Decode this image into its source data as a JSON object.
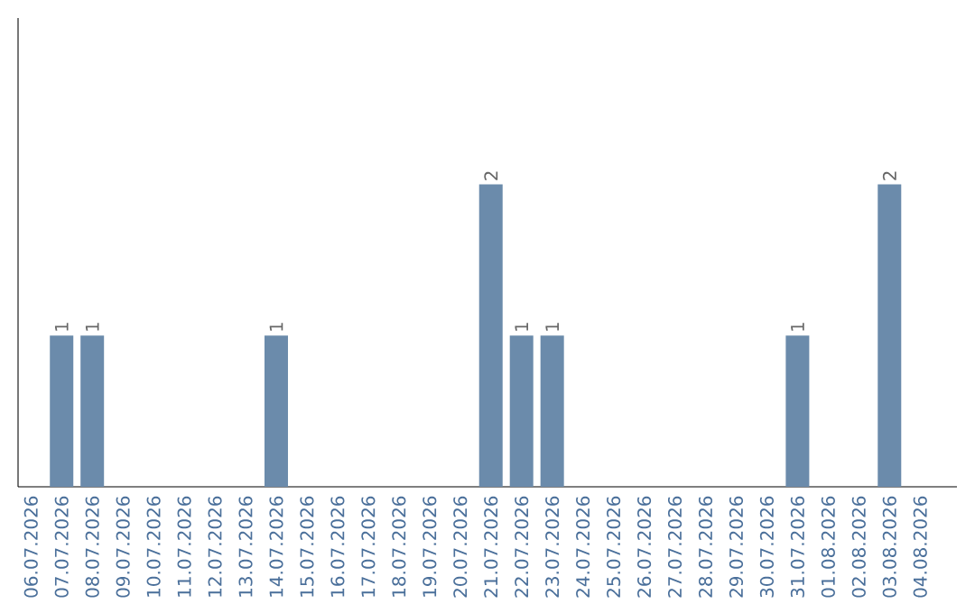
{
  "chart_data": {
    "type": "bar",
    "categories": [
      "06.07.2026",
      "07.07.2026",
      "08.07.2026",
      "09.07.2026",
      "10.07.2026",
      "11.07.2026",
      "12.07.2026",
      "13.07.2026",
      "14.07.2026",
      "15.07.2026",
      "16.07.2026",
      "17.07.2026",
      "18.07.2026",
      "19.07.2026",
      "20.07.2026",
      "21.07.2026",
      "22.07.2026",
      "23.07.2026",
      "24.07.2026",
      "25.07.2026",
      "26.07.2026",
      "27.07.2026",
      "28.07.2026",
      "29.07.2026",
      "30.07.2026",
      "31.07.2026",
      "01.08.2026",
      "02.08.2026",
      "03.08.2026",
      "04.08.2026"
    ],
    "values": [
      0,
      1,
      1,
      0,
      0,
      0,
      0,
      0,
      1,
      0,
      0,
      0,
      0,
      0,
      0,
      2,
      1,
      1,
      0,
      0,
      0,
      0,
      0,
      0,
      0,
      1,
      0,
      0,
      2,
      0
    ],
    "value_labels": [
      null,
      "1",
      "1",
      null,
      null,
      null,
      null,
      null,
      "1",
      null,
      null,
      null,
      null,
      null,
      null,
      "2",
      "1",
      "1",
      null,
      null,
      null,
      null,
      null,
      null,
      null,
      "1",
      null,
      null,
      "2",
      null
    ],
    "color": "#6b8bab",
    "ylim": [
      0,
      3.1
    ]
  }
}
